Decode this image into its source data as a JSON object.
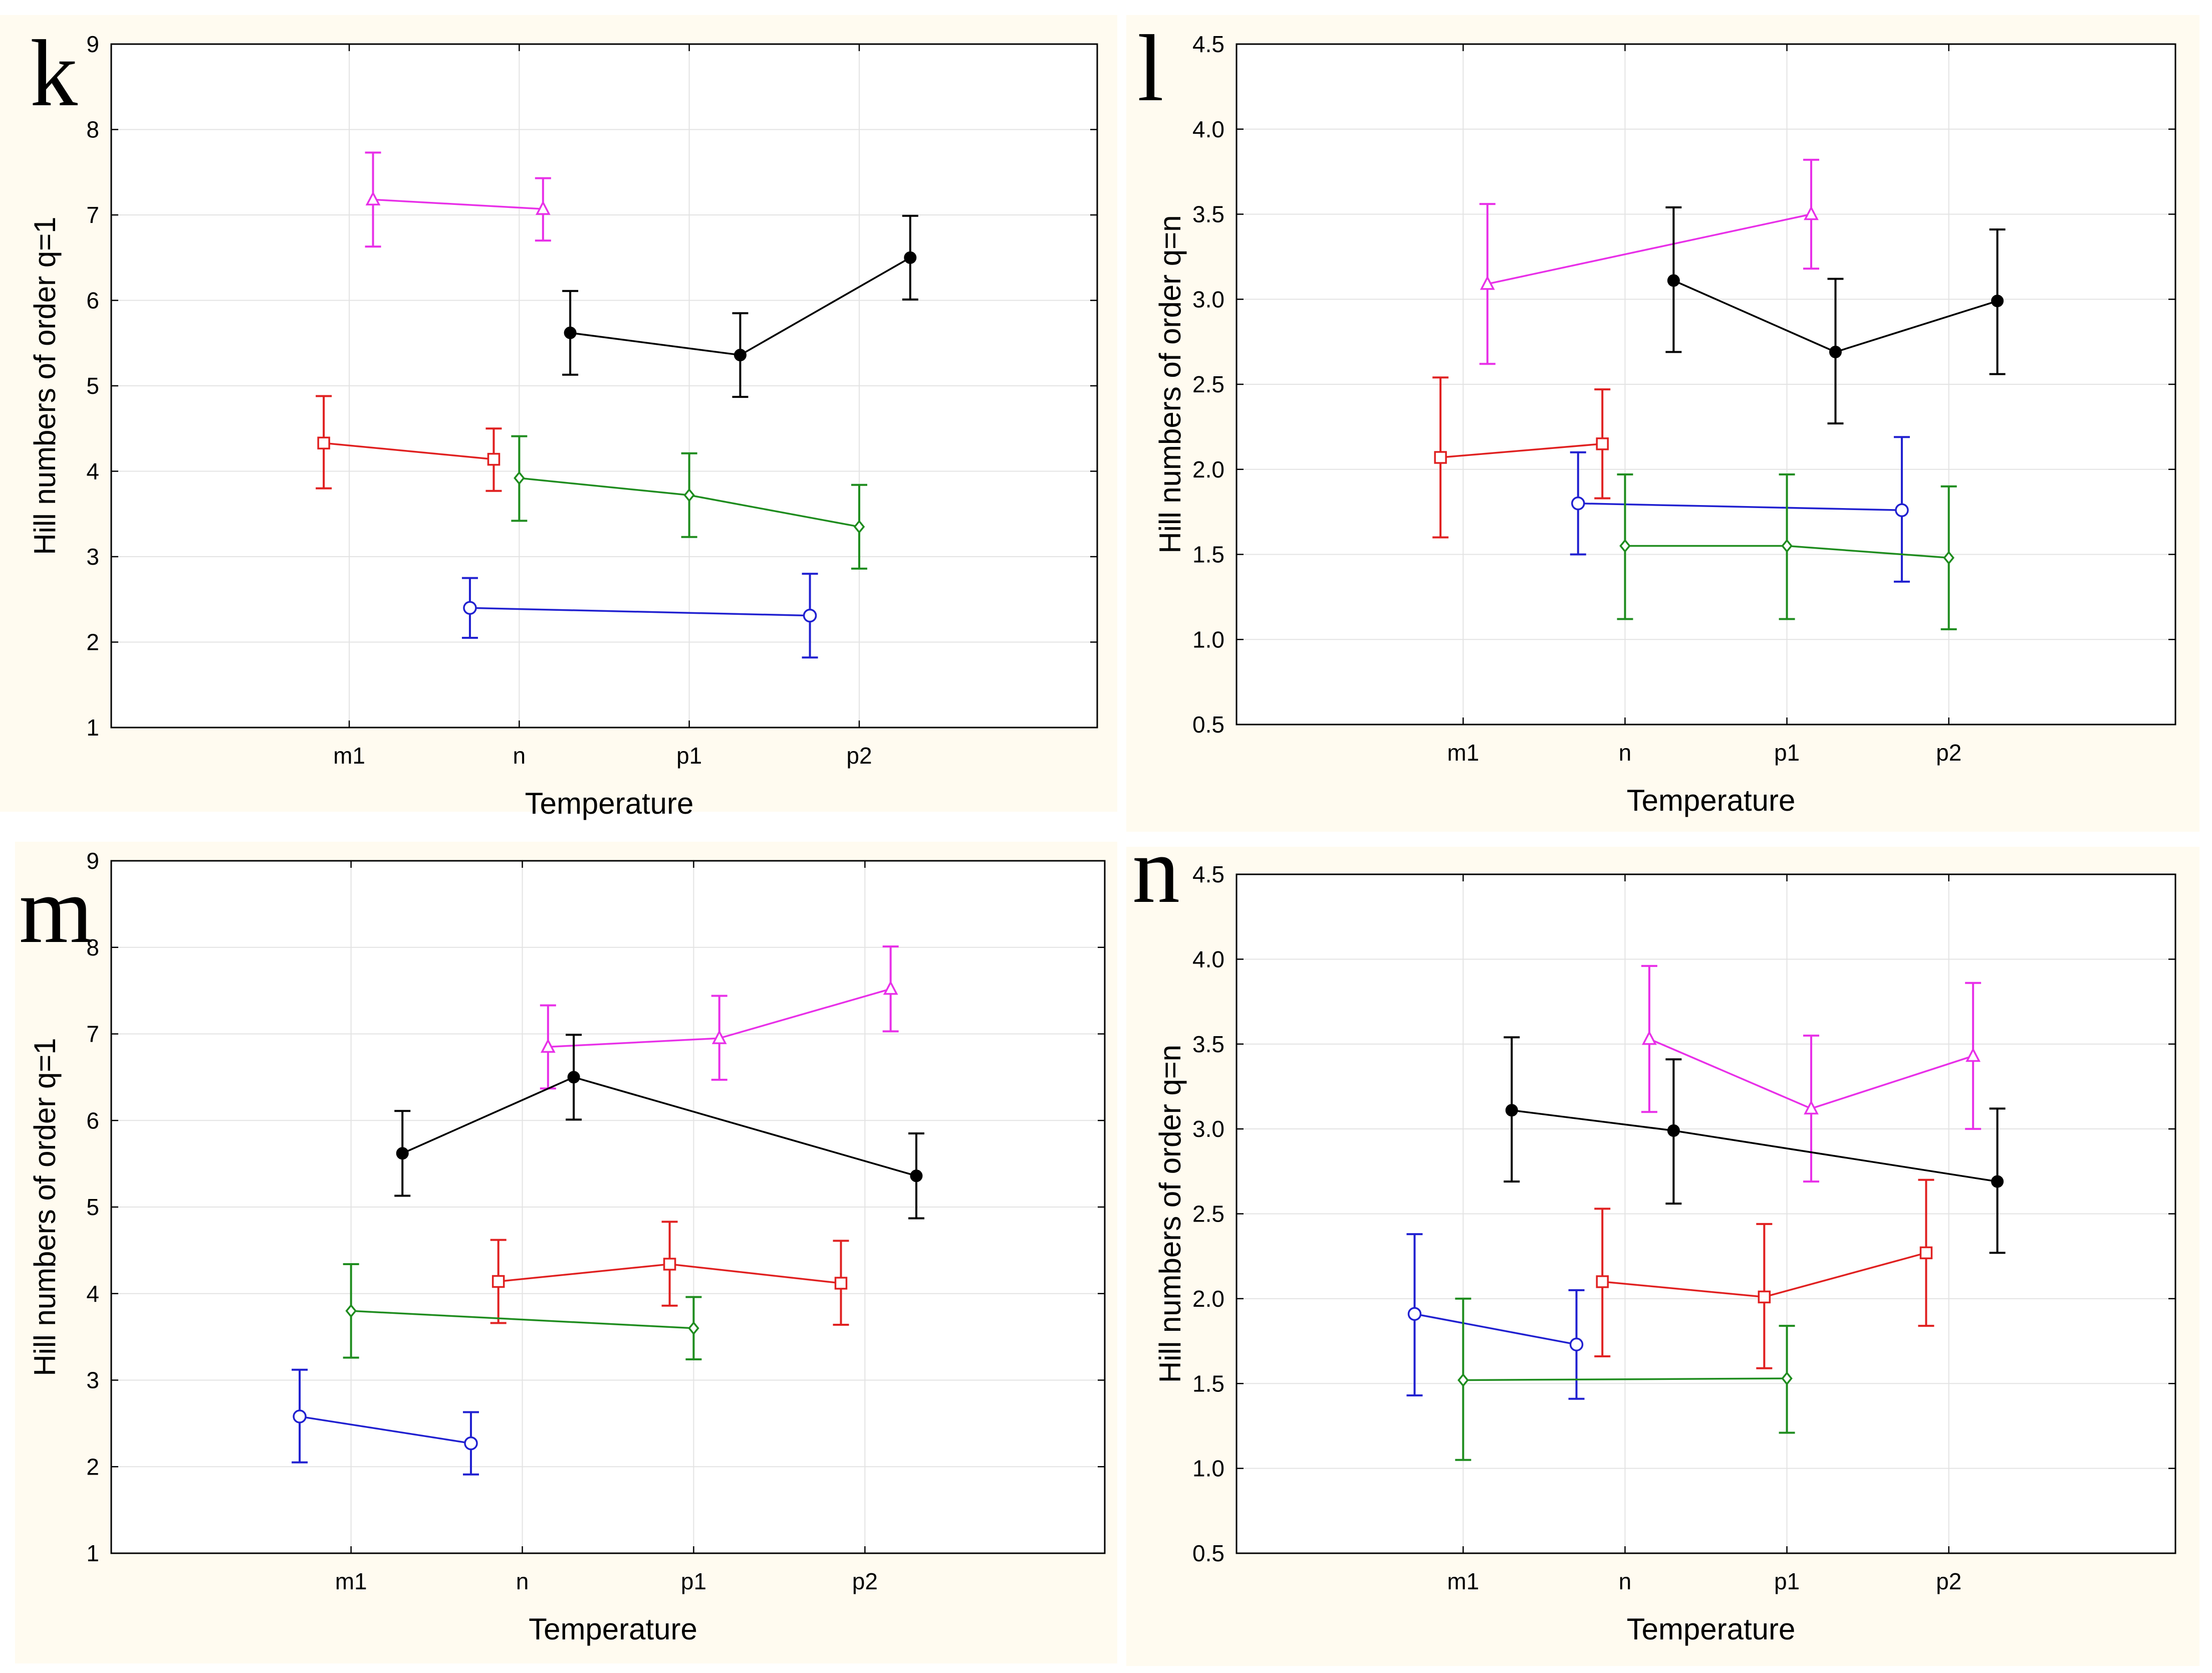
{
  "figure_description": "Four panels (k, l, m, n) of Hill numbers versus Temperature",
  "chart_data": [
    {
      "type": "line",
      "panel": "k",
      "xlabel": "Temperature",
      "ylabel": "Hill numbers of order q=1",
      "categories": [
        "m1",
        "n",
        "p1",
        "p2"
      ],
      "ylim": [
        1,
        9
      ],
      "yticks": [
        "1",
        "2",
        "3",
        "4",
        "5",
        "6",
        "7",
        "8",
        "9"
      ],
      "xlim_extra": "categories centered with half-step padding",
      "series": [
        {
          "name": "magenta",
          "color": "#e830e8",
          "marker": "triangle",
          "x": [
            0.14,
            1.14
          ],
          "values": [
            7.18,
            7.07
          ],
          "err_low": [
            6.63,
            6.7
          ],
          "err_high": [
            7.73,
            7.43
          ]
        },
        {
          "name": "black",
          "color": "#000000",
          "marker": "filled-circle",
          "x": [
            1.3,
            2.3,
            3.3
          ],
          "values": [
            5.62,
            5.36,
            6.5
          ],
          "err_low": [
            5.13,
            4.87,
            6.01
          ],
          "err_high": [
            6.11,
            5.85,
            6.99
          ]
        },
        {
          "name": "red",
          "color": "#e02020",
          "marker": "square",
          "x": [
            -0.15,
            0.85
          ],
          "values": [
            4.33,
            4.14
          ],
          "err_low": [
            3.8,
            3.77
          ],
          "err_high": [
            4.88,
            4.5
          ]
        },
        {
          "name": "green",
          "color": "#1e8c1e",
          "marker": "diamond",
          "x": [
            1.0,
            2.0,
            3.0
          ],
          "values": [
            3.92,
            3.72,
            3.35
          ],
          "err_low": [
            3.42,
            3.23,
            2.86
          ],
          "err_high": [
            4.41,
            4.21,
            3.84
          ]
        },
        {
          "name": "blue",
          "color": "#2020d0",
          "marker": "circle",
          "x": [
            0.71,
            2.71
          ],
          "values": [
            2.4,
            2.31
          ],
          "err_low": [
            2.05,
            1.82
          ],
          "err_high": [
            2.75,
            2.8
          ]
        }
      ]
    },
    {
      "type": "line",
      "panel": "l",
      "xlabel": "Temperature",
      "ylabel": "Hill numbers of order q=n",
      "categories": [
        "m1",
        "n",
        "p1",
        "p2"
      ],
      "ylim": [
        0.5,
        4.5
      ],
      "yticks": [
        "0.5",
        "1.0",
        "1.5",
        "2.0",
        "2.5",
        "3.0",
        "3.5",
        "4.0",
        "4.5"
      ],
      "series": [
        {
          "name": "magenta",
          "color": "#e830e8",
          "marker": "triangle",
          "x": [
            0.15,
            2.15
          ],
          "values": [
            3.09,
            3.5
          ],
          "err_low": [
            2.62,
            3.18
          ],
          "err_high": [
            3.56,
            3.82
          ]
        },
        {
          "name": "black",
          "color": "#000000",
          "marker": "filled-circle",
          "x": [
            1.3,
            2.3,
            3.3
          ],
          "values": [
            3.11,
            2.69,
            2.99
          ],
          "err_low": [
            2.69,
            2.27,
            2.56
          ],
          "err_high": [
            3.54,
            3.12,
            3.41
          ]
        },
        {
          "name": "red",
          "color": "#e02020",
          "marker": "square",
          "x": [
            -0.14,
            0.86
          ],
          "values": [
            2.07,
            2.15
          ],
          "err_low": [
            1.6,
            1.83
          ],
          "err_high": [
            2.54,
            2.47
          ]
        },
        {
          "name": "blue",
          "color": "#2020d0",
          "marker": "circle",
          "x": [
            0.71,
            2.71
          ],
          "values": [
            1.8,
            1.76
          ],
          "err_low": [
            1.5,
            1.34
          ],
          "err_high": [
            2.1,
            2.19
          ]
        },
        {
          "name": "green",
          "color": "#1e8c1e",
          "marker": "diamond",
          "x": [
            1.0,
            2.0,
            3.0
          ],
          "values": [
            1.55,
            1.55,
            1.48
          ],
          "err_low": [
            1.12,
            1.12,
            1.06
          ],
          "err_high": [
            1.97,
            1.97,
            1.9
          ]
        }
      ]
    },
    {
      "type": "line",
      "panel": "m",
      "xlabel": "Temperature",
      "ylabel": "Hill numbers of order q=1",
      "categories": [
        "m1",
        "n",
        "p1",
        "p2"
      ],
      "ylim": [
        1,
        9
      ],
      "yticks": [
        "1",
        "2",
        "3",
        "4",
        "5",
        "6",
        "7",
        "8",
        "9"
      ],
      "series": [
        {
          "name": "magenta",
          "color": "#e830e8",
          "marker": "triangle",
          "x": [
            1.15,
            2.15,
            3.15
          ],
          "values": [
            6.85,
            6.95,
            7.52
          ],
          "err_low": [
            6.37,
            6.47,
            7.03
          ],
          "err_high": [
            7.33,
            7.44,
            8.01
          ]
        },
        {
          "name": "black",
          "color": "#000000",
          "marker": "filled-circle",
          "x": [
            0.3,
            1.3,
            3.3
          ],
          "values": [
            5.62,
            6.5,
            5.36
          ],
          "err_low": [
            5.13,
            6.01,
            4.87
          ],
          "err_high": [
            6.11,
            6.99,
            5.85
          ]
        },
        {
          "name": "red",
          "color": "#e02020",
          "marker": "square",
          "x": [
            0.86,
            1.86,
            2.86
          ],
          "values": [
            4.14,
            4.34,
            4.12
          ],
          "err_low": [
            3.66,
            3.86,
            3.64
          ],
          "err_high": [
            4.62,
            4.83,
            4.61
          ]
        },
        {
          "name": "green",
          "color": "#1e8c1e",
          "marker": "diamond",
          "x": [
            0.0,
            2.0
          ],
          "values": [
            3.8,
            3.6
          ],
          "err_low": [
            3.26,
            3.24
          ],
          "err_high": [
            4.34,
            3.96
          ]
        },
        {
          "name": "blue",
          "color": "#2020d0",
          "marker": "circle",
          "x": [
            -0.3,
            0.7
          ],
          "values": [
            2.58,
            2.27
          ],
          "err_low": [
            2.05,
            1.91
          ],
          "err_high": [
            3.12,
            2.63
          ]
        }
      ]
    },
    {
      "type": "line",
      "panel": "n",
      "xlabel": "Temperature",
      "ylabel": "Hill numbers of order q=n",
      "categories": [
        "m1",
        "n",
        "p1",
        "p2"
      ],
      "ylim": [
        0.5,
        4.5
      ],
      "yticks": [
        "0.5",
        "1.0",
        "1.5",
        "2.0",
        "2.5",
        "3.0",
        "3.5",
        "4.0",
        "4.5"
      ],
      "series": [
        {
          "name": "magenta",
          "color": "#e830e8",
          "marker": "triangle",
          "x": [
            1.15,
            2.15,
            3.15
          ],
          "values": [
            3.53,
            3.12,
            3.43
          ],
          "err_low": [
            3.1,
            2.69,
            3.0
          ],
          "err_high": [
            3.96,
            3.55,
            3.86
          ]
        },
        {
          "name": "black",
          "color": "#000000",
          "marker": "filled-circle",
          "x": [
            0.3,
            1.3,
            3.3
          ],
          "values": [
            3.11,
            2.99,
            2.69
          ],
          "err_low": [
            2.69,
            2.56,
            2.27
          ],
          "err_high": [
            3.54,
            3.41,
            3.12
          ]
        },
        {
          "name": "red",
          "color": "#e02020",
          "marker": "square",
          "x": [
            0.86,
            1.86,
            2.86
          ],
          "values": [
            2.1,
            2.01,
            2.27
          ],
          "err_low": [
            1.66,
            1.59,
            1.84
          ],
          "err_high": [
            2.53,
            2.44,
            2.7
          ]
        },
        {
          "name": "blue",
          "color": "#2020d0",
          "marker": "circle",
          "x": [
            -0.3,
            0.7
          ],
          "values": [
            1.91,
            1.73
          ],
          "err_low": [
            1.43,
            1.41
          ],
          "err_high": [
            2.38,
            2.05
          ]
        },
        {
          "name": "green",
          "color": "#1e8c1e",
          "marker": "diamond",
          "x": [
            0.0,
            2.0
          ],
          "values": [
            1.52,
            1.53
          ],
          "err_low": [
            1.05,
            1.21
          ],
          "err_high": [
            2.0,
            1.84
          ]
        }
      ]
    }
  ]
}
